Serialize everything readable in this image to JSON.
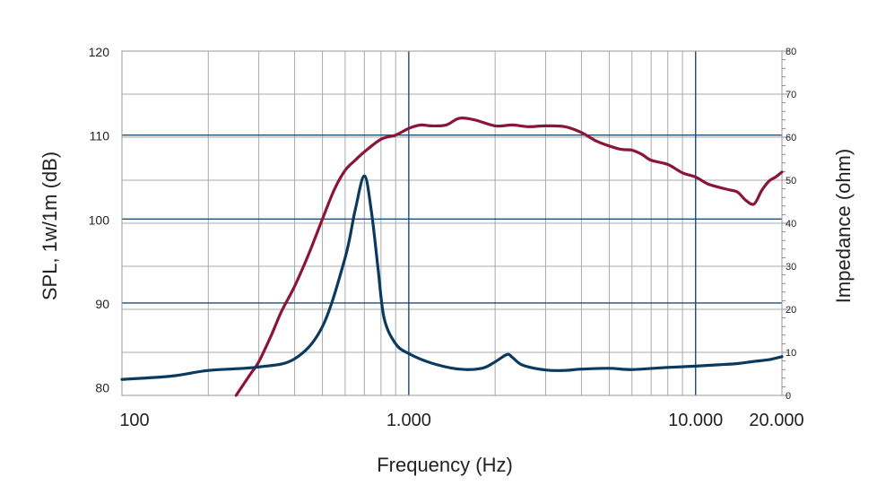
{
  "chart_data": {
    "type": "line",
    "xlabel": "Frequency (Hz)",
    "ylabel": "SPL, 1w/1m (dB)",
    "y2label": "Impedance (ohm)",
    "x_scale": "log",
    "xlim": [
      100,
      20000
    ],
    "ylim": [
      79,
      120
    ],
    "y2lim": [
      0,
      80
    ],
    "grid": true,
    "x_ticks": [
      {
        "value": 100,
        "label": "100"
      },
      {
        "value": 1000,
        "label": "1.000"
      },
      {
        "value": 10000,
        "label": "10.000"
      },
      {
        "value": 20000,
        "label": "20.000"
      }
    ],
    "y_ticks": [
      {
        "value": 80,
        "label": "80"
      },
      {
        "value": 90,
        "label": "90"
      },
      {
        "value": 100,
        "label": "100"
      },
      {
        "value": 110,
        "label": "110"
      },
      {
        "value": 120,
        "label": "120"
      }
    ],
    "y2_ticks": [
      {
        "value": 0,
        "label": "0"
      },
      {
        "value": 10,
        "label": "10"
      },
      {
        "value": 20,
        "label": "20"
      },
      {
        "value": 30,
        "label": "30"
      },
      {
        "value": 40,
        "label": "40"
      },
      {
        "value": 50,
        "label": "50"
      },
      {
        "value": 60,
        "label": "60"
      },
      {
        "value": 70,
        "label": "70"
      },
      {
        "value": 80,
        "label": "80"
      }
    ],
    "series": [
      {
        "axis": "left",
        "color": "#8a1538",
        "x": [
          250,
          280,
          300,
          330,
          360,
          400,
          450,
          500,
          550,
          600,
          650,
          700,
          800,
          900,
          1000,
          1100,
          1200,
          1350,
          1500,
          1700,
          2000,
          2300,
          2600,
          3000,
          3500,
          4000,
          4500,
          5000,
          5500,
          6000,
          6500,
          7000,
          8000,
          9000,
          10000,
          11000,
          12000,
          13000,
          14000,
          15000,
          16000,
          17000,
          18000,
          19000,
          20000
        ],
        "y": [
          79,
          81.5,
          83,
          86,
          89,
          92,
          96,
          100,
          103.5,
          105.8,
          107,
          108,
          109.5,
          110,
          110.8,
          111.2,
          111.1,
          111.2,
          112,
          111.8,
          111.1,
          111.2,
          111,
          111.1,
          111,
          110.3,
          109.3,
          108.7,
          108.3,
          108.2,
          107.7,
          107,
          106.5,
          105.5,
          105,
          104.2,
          103.8,
          103.5,
          103.2,
          102.2,
          101.8,
          103.4,
          104.5,
          105,
          105.6
        ]
      },
      {
        "axis": "right",
        "color": "#0b3a60",
        "x": [
          100,
          150,
          200,
          300,
          400,
          500,
          600,
          650,
          700,
          740,
          780,
          820,
          900,
          1000,
          1200,
          1500,
          1800,
          2000,
          2200,
          2300,
          2500,
          3000,
          3500,
          4000,
          5000,
          6000,
          8000,
          10000,
          12000,
          14000,
          16000,
          18000,
          20000
        ],
        "y": [
          3.7,
          4.5,
          5.8,
          6.6,
          8.5,
          16,
          32,
          43,
          51,
          43,
          30,
          18,
          12,
          9.7,
          7.5,
          6.1,
          6.3,
          7.8,
          9.5,
          8.8,
          7,
          5.9,
          5.8,
          6.1,
          6.3,
          6,
          6.5,
          6.8,
          7.1,
          7.4,
          7.9,
          8.3,
          9
        ]
      }
    ]
  }
}
